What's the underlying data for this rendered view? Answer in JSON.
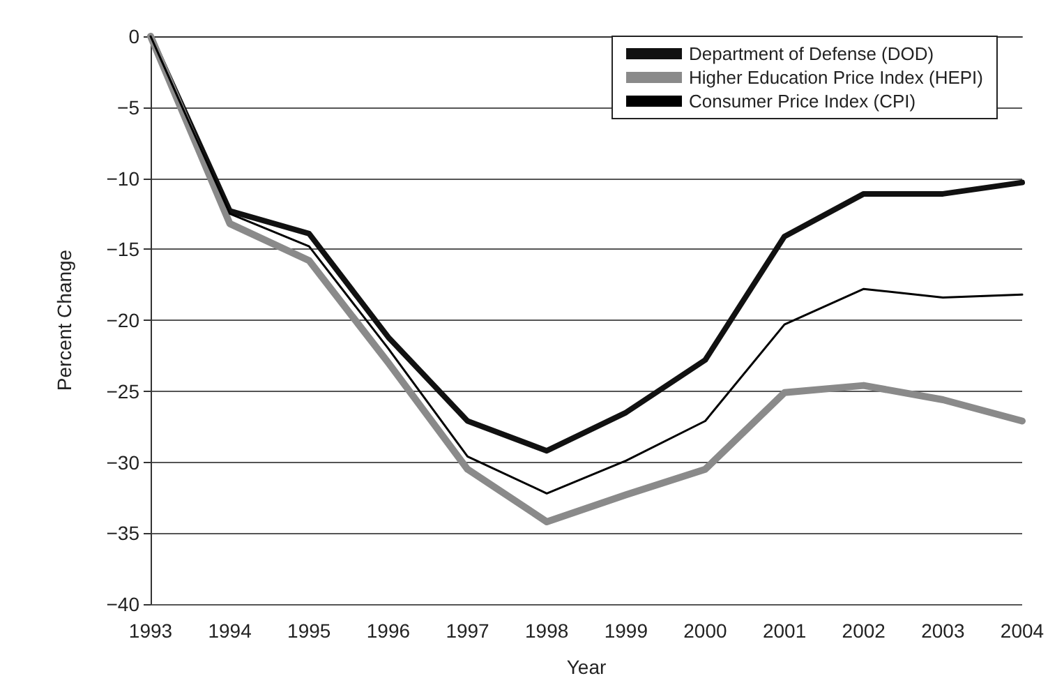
{
  "chart_data": {
    "type": "line",
    "xlabel": "Year",
    "ylabel": "Percent Change",
    "categories": [
      "1993",
      "1994",
      "1995",
      "1996",
      "1997",
      "1998",
      "1999",
      "2000",
      "2001",
      "2002",
      "2003",
      "2004"
    ],
    "series": [
      {
        "name": "Department of Defense (DOD)",
        "color": "#111111",
        "values": [
          0,
          -12.3,
          -13.9,
          -21.2,
          -27.1,
          -29.2,
          -26.5,
          -22.8,
          -14.1,
          -11.1,
          -11.1,
          -10.3
        ]
      },
      {
        "name": "Higher Education Price Index (HEPI)",
        "color": "#8a8a8a",
        "values": [
          0,
          -13.2,
          -15.8,
          -23.0,
          -30.5,
          -34.2,
          -32.3,
          -30.5,
          -25.1,
          -24.6,
          -25.6,
          -27.1
        ]
      },
      {
        "name": "Consumer Price Index (CPI)",
        "color": "#000000",
        "values": [
          0,
          -12.5,
          -14.8,
          -22.0,
          -29.6,
          -32.2,
          -29.9,
          -27.1,
          -20.3,
          -17.8,
          -18.4,
          -18.2
        ]
      }
    ],
    "ylim": [
      -40,
      0
    ],
    "yticks": [
      -40,
      -35,
      -30,
      -25,
      -20,
      -15,
      -10,
      -5,
      0
    ],
    "grid": "y",
    "legend": "top right",
    "marker": "none",
    "line_style": "solid"
  }
}
